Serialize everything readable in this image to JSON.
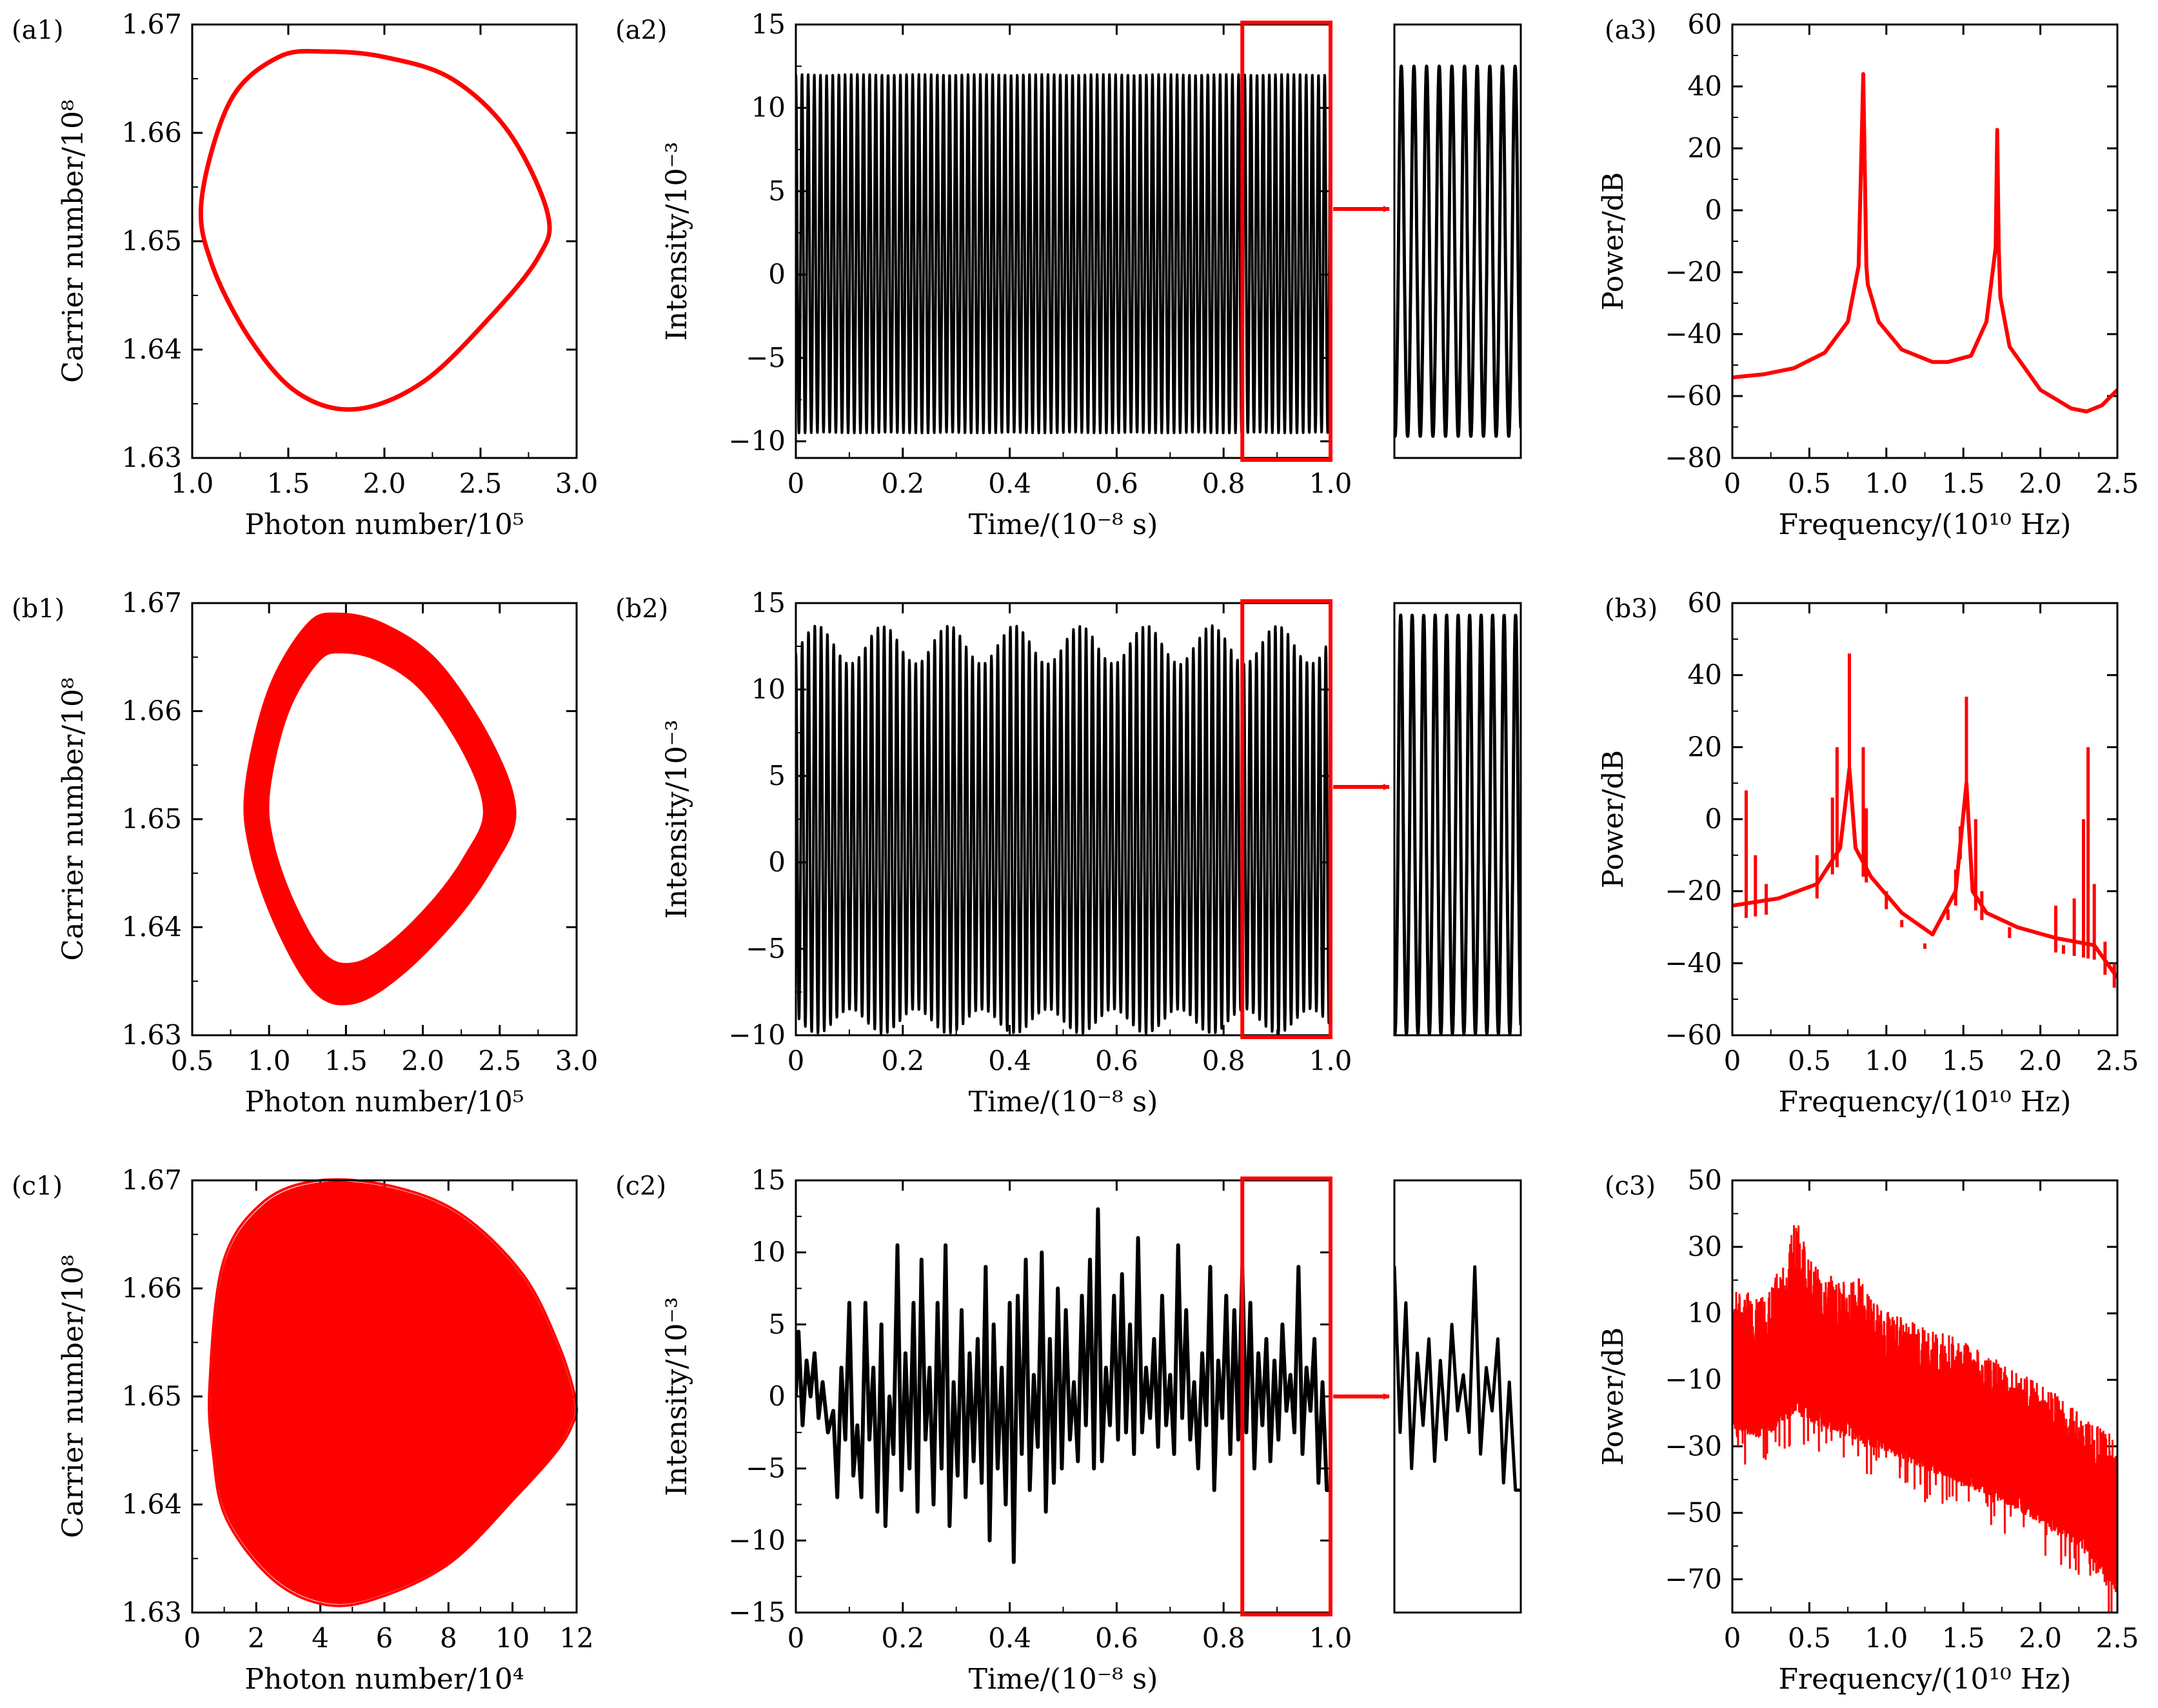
{
  "figure": {
    "colors": {
      "red": "#ff0000",
      "black": "#000000",
      "axis": "#000000"
    },
    "units": {
      "time_axis": "x in 10^-8 s",
      "intensity_axis": "y in 10^-3",
      "power_axis": "y in dB",
      "frequency_axis": "x in 10^10 Hz"
    }
  },
  "chart_data": [
    {
      "id": "a1",
      "panel_label": "(a1)",
      "type": "line",
      "xlabel": "Photon number/10⁵",
      "ylabel": "Carrier number/10⁸",
      "xlim": [
        1.0,
        3.0
      ],
      "ylim": [
        1.63,
        1.67
      ],
      "xticks": [
        "1.0",
        "1.5",
        "2.0",
        "2.5",
        "3.0"
      ],
      "yticks": [
        "1.63",
        "1.64",
        "1.65",
        "1.66",
        "1.67"
      ],
      "series": [
        {
          "name": "phase portrait",
          "color": "#ff0000",
          "kind": "limit-cycle",
          "x": [
            1.05,
            1.2,
            1.45,
            1.7,
            2.0,
            2.35,
            2.65,
            2.85,
            2.8,
            2.55,
            2.2,
            1.85,
            1.55,
            1.3,
            1.1,
            1.05
          ],
          "y": [
            1.654,
            1.663,
            1.667,
            1.6675,
            1.667,
            1.665,
            1.66,
            1.6525,
            1.6485,
            1.643,
            1.637,
            1.6345,
            1.636,
            1.641,
            1.648,
            1.654
          ]
        }
      ]
    },
    {
      "id": "a2",
      "panel_label": "(a2)",
      "type": "line",
      "xlabel": "Time/(10⁻⁸ s)",
      "ylabel": "Intensity/10⁻³",
      "xlim": [
        0,
        1.0
      ],
      "ylim": [
        -11,
        15
      ],
      "xticks": [
        "0",
        "0.2",
        "0.4",
        "0.6",
        "0.8",
        "1.0"
      ],
      "yticks": [
        "−10",
        "−5",
        "0",
        "5",
        "10",
        "15"
      ],
      "series": [
        {
          "name": "intensity",
          "color": "#000000",
          "kind": "periodic",
          "period": 0.0115,
          "max": 12,
          "min": -9.5
        }
      ],
      "zoom": {
        "x_range": [
          0.835,
          1.0
        ],
        "cycles": 10,
        "max": 12.5,
        "min": -9.7
      }
    },
    {
      "id": "a3",
      "panel_label": "(a3)",
      "type": "line",
      "xlabel": "Frequency/(10¹⁰ Hz)",
      "ylabel": "Power/dB",
      "xlim": [
        0,
        2.5
      ],
      "ylim": [
        -80,
        60
      ],
      "xticks": [
        "0",
        "0.5",
        "1.0",
        "1.5",
        "2.0",
        "2.5"
      ],
      "yticks": [
        "−80",
        "−60",
        "−40",
        "−20",
        "0",
        "20",
        "40",
        "60"
      ],
      "series": [
        {
          "name": "power spectrum",
          "color": "#ff0000",
          "x": [
            0,
            0.2,
            0.4,
            0.6,
            0.75,
            0.82,
            0.85,
            0.87,
            0.88,
            0.95,
            1.1,
            1.3,
            1.4,
            1.55,
            1.65,
            1.71,
            1.72,
            1.73,
            1.74,
            1.8,
            2.0,
            2.2,
            2.3,
            2.4,
            2.5
          ],
          "y": [
            -54,
            -53,
            -51,
            -46,
            -36,
            -18,
            44,
            -18,
            -24,
            -36,
            -45,
            -49,
            -49,
            -47,
            -36,
            -12,
            26,
            -12,
            -28,
            -44,
            -58,
            -64,
            -65,
            -63,
            -58
          ]
        }
      ]
    },
    {
      "id": "b1",
      "panel_label": "(b1)",
      "type": "line",
      "xlabel": "Photon number/10⁵",
      "ylabel": "Carrier number/10⁸",
      "xlim": [
        0.5,
        3.0
      ],
      "ylim": [
        1.63,
        1.67
      ],
      "xticks": [
        "0.5",
        "1.0",
        "1.5",
        "2.0",
        "2.5",
        "3.0"
      ],
      "yticks": [
        "1.63",
        "1.64",
        "1.65",
        "1.66",
        "1.67"
      ],
      "series": [
        {
          "name": "phase portrait",
          "color": "#ff0000",
          "kind": "thick-torus",
          "x": [
            0.85,
            1.0,
            1.25,
            1.45,
            1.75,
            2.1,
            2.45,
            2.6,
            2.45,
            2.2,
            1.85,
            1.55,
            1.3,
            1.05,
            0.88,
            0.85
          ],
          "y": [
            1.653,
            1.662,
            1.668,
            1.669,
            1.668,
            1.6645,
            1.657,
            1.6505,
            1.6455,
            1.6405,
            1.6355,
            1.633,
            1.634,
            1.64,
            1.647,
            1.653
          ]
        }
      ]
    },
    {
      "id": "b2",
      "panel_label": "(b2)",
      "type": "line",
      "xlabel": "Time/(10⁻⁸ s)",
      "ylabel": "Intensity/10⁻³",
      "xlim": [
        0,
        1.0
      ],
      "ylim": [
        -10,
        15
      ],
      "xticks": [
        "0",
        "0.2",
        "0.4",
        "0.6",
        "0.8",
        "1.0"
      ],
      "yticks": [
        "−10",
        "−5",
        "0",
        "5",
        "10",
        "15"
      ],
      "series": [
        {
          "name": "intensity",
          "color": "#000000",
          "kind": "quasi-periodic",
          "period": 0.0118,
          "envelope_period": 0.123,
          "max_range": [
            11.5,
            13.7
          ],
          "min_range": [
            -8.5,
            -9.9
          ]
        }
      ],
      "zoom": {
        "x_range": [
          0.835,
          1.0
        ],
        "cycles": 11,
        "max": 14.3,
        "min": -9.9
      }
    },
    {
      "id": "b3",
      "panel_label": "(b3)",
      "type": "line",
      "xlabel": "Frequency/(10¹⁰ Hz)",
      "ylabel": "Power/dB",
      "xlim": [
        0,
        2.5
      ],
      "ylim": [
        -60,
        60
      ],
      "xticks": [
        "0",
        "0.5",
        "1.0",
        "1.5",
        "2.0",
        "2.5"
      ],
      "yticks": [
        "−60",
        "−40",
        "−20",
        "0",
        "20",
        "40",
        "60"
      ],
      "series": [
        {
          "name": "power spectrum",
          "color": "#ff0000",
          "baseline": {
            "x": [
              0,
              0.3,
              0.55,
              0.7,
              0.76,
              0.8,
              0.9,
              1.1,
              1.3,
              1.45,
              1.52,
              1.56,
              1.65,
              1.85,
              2.1,
              2.35,
              2.5
            ],
            "y": [
              -24,
              -22,
              -18,
              -8,
              14,
              -8,
              -16,
              -26,
              -32,
              -20,
              10,
              -20,
              -26,
              -30,
              -33,
              -35,
              -44
            ]
          },
          "peaks": [
            [
              0.09,
              8
            ],
            [
              0.15,
              -10
            ],
            [
              0.22,
              -18
            ],
            [
              0.55,
              -10
            ],
            [
              0.65,
              6
            ],
            [
              0.68,
              20
            ],
            [
              0.76,
              46
            ],
            [
              0.85,
              20
            ],
            [
              0.87,
              3
            ],
            [
              1.0,
              -20
            ],
            [
              1.1,
              -28
            ],
            [
              1.25,
              -36
            ],
            [
              1.4,
              -25
            ],
            [
              1.45,
              -14
            ],
            [
              1.48,
              -2
            ],
            [
              1.52,
              34
            ],
            [
              1.58,
              0
            ],
            [
              1.62,
              -20
            ],
            [
              1.8,
              -30
            ],
            [
              2.1,
              -24
            ],
            [
              2.15,
              -35
            ],
            [
              2.22,
              -22
            ],
            [
              2.28,
              0
            ],
            [
              2.31,
              20
            ],
            [
              2.35,
              -18
            ],
            [
              2.42,
              -34
            ],
            [
              2.48,
              -40
            ]
          ]
        }
      ]
    },
    {
      "id": "c1",
      "panel_label": "(c1)",
      "type": "line",
      "xlabel": "Photon number/10⁴",
      "ylabel": "Carrier number/10⁸",
      "xlim": [
        0,
        12
      ],
      "ylim": [
        1.63,
        1.67
      ],
      "xticks": [
        "0",
        "2",
        "4",
        "6",
        "8",
        "10",
        "12"
      ],
      "yticks": [
        "1.63",
        "1.64",
        "1.65",
        "1.66",
        "1.67"
      ],
      "series": [
        {
          "name": "phase portrait",
          "color": "#ff0000",
          "kind": "chaotic-filled",
          "x": [
            0.7,
            1.1,
            2.3,
            4.0,
            6.2,
            8.3,
            10.2,
            11.3,
            11.8,
            11.7,
            11.2,
            10.0,
            8.0,
            5.8,
            4.2,
            2.6,
            1.2,
            0.8,
            0.7
          ],
          "y": [
            1.651,
            1.662,
            1.6675,
            1.6695,
            1.669,
            1.6665,
            1.661,
            1.6545,
            1.6495,
            1.6475,
            1.645,
            1.641,
            1.635,
            1.6318,
            1.6312,
            1.6335,
            1.639,
            1.645,
            1.651
          ]
        }
      ]
    },
    {
      "id": "c2",
      "panel_label": "(c2)",
      "type": "line",
      "xlabel": "Time/(10⁻⁸ s)",
      "ylabel": "Intensity/10⁻³",
      "xlim": [
        0,
        1.0
      ],
      "ylim": [
        -15,
        15
      ],
      "xticks": [
        "0",
        "0.2",
        "0.4",
        "0.6",
        "0.8",
        "1.0"
      ],
      "yticks": [
        "−15",
        "−10",
        "−5",
        "0",
        "5",
        "10",
        "15"
      ],
      "series": [
        {
          "name": "intensity",
          "color": "#000000",
          "kind": "chaotic",
          "peak_times": [
            0.005,
            0.02,
            0.035,
            0.05,
            0.07,
            0.085,
            0.1,
            0.115,
            0.13,
            0.145,
            0.16,
            0.175,
            0.19,
            0.205,
            0.22,
            0.235,
            0.25,
            0.265,
            0.28,
            0.295,
            0.31,
            0.325,
            0.34,
            0.355,
            0.37,
            0.385,
            0.4,
            0.415,
            0.43,
            0.445,
            0.46,
            0.475,
            0.49,
            0.505,
            0.52,
            0.535,
            0.55,
            0.565,
            0.58,
            0.595,
            0.61,
            0.625,
            0.64,
            0.655,
            0.67,
            0.685,
            0.7,
            0.715,
            0.73,
            0.745,
            0.76,
            0.775,
            0.79,
            0.805,
            0.82,
            0.835,
            0.85,
            0.865,
            0.88,
            0.895,
            0.91,
            0.925,
            0.94,
            0.955,
            0.97,
            0.985
          ],
          "peaks": [
            4.5,
            2.5,
            3,
            1,
            -1,
            2,
            6.5,
            -2,
            6.5,
            2,
            5,
            0,
            10.5,
            3,
            6.5,
            9.5,
            2,
            6.5,
            10.5,
            1,
            6,
            3,
            4,
            9,
            5,
            2,
            6.5,
            7,
            9.5,
            1.5,
            10,
            4,
            7.5,
            6,
            1,
            7,
            9.5,
            13,
            2,
            7,
            8.5,
            5,
            11,
            2,
            4,
            7,
            1.5,
            10.5,
            6,
            1,
            3,
            9,
            2.5,
            7,
            6,
            9,
            6.5,
            3,
            4,
            2.5,
            5,
            1.5,
            9,
            2,
            4,
            1
          ],
          "troughs": [
            -2,
            0,
            -1.5,
            -2.5,
            -7,
            -3,
            -5.5,
            -7,
            -3,
            -8,
            -9,
            -4,
            -6.5,
            -5,
            -8,
            -3,
            -7.5,
            -5,
            -9,
            -5.5,
            -7,
            -4.5,
            -6,
            -10,
            -5,
            -7.5,
            -11.5,
            -4,
            -6.5,
            -3.5,
            -8,
            -6,
            -5,
            -3,
            -4.5,
            -2,
            -5,
            -4.5,
            -2,
            -3,
            -2.5,
            -4,
            -2.5,
            -1.5,
            -3.5,
            -2,
            -4,
            -1.5,
            -3,
            -5,
            -2,
            -6.5,
            -1.5,
            -4,
            -3,
            -2.5,
            -5,
            -2,
            -4.5,
            -3,
            -1,
            -2.5,
            -4,
            -1,
            -6,
            -6.5
          ]
        }
      ],
      "zoom": {
        "x_range": [
          0.835,
          1.0
        ]
      }
    },
    {
      "id": "c3",
      "panel_label": "(c3)",
      "type": "line",
      "xlabel": "Frequency/(10¹⁰ Hz)",
      "ylabel": "Power/dB",
      "xlim": [
        0,
        2.5
      ],
      "ylim": [
        -80,
        50
      ],
      "xticks": [
        "0",
        "0.5",
        "1.0",
        "1.5",
        "2.0",
        "2.5"
      ],
      "yticks": [
        "−70",
        "−50",
        "−30",
        "−10",
        "10",
        "30",
        "50"
      ],
      "series": [
        {
          "name": "power spectrum",
          "color": "#ff0000",
          "kind": "broadband",
          "envelope_top": {
            "x": [
              0,
              0.2,
              0.35,
              0.42,
              0.5,
              0.7,
              0.85,
              0.95,
              1.2,
              1.5,
              1.8,
              2.1,
              2.3,
              2.5
            ],
            "y": [
              18,
              15,
              28,
              42,
              26,
              20,
              21,
              12,
              7,
              2,
              -6,
              -14,
              -22,
              -26
            ]
          },
          "envelope_bottom": {
            "x": [
              0,
              0.2,
              0.4,
              0.6,
              0.9,
              1.2,
              1.5,
              1.8,
              2.1,
              2.3,
              2.5
            ],
            "y": [
              -25,
              -28,
              -20,
              -25,
              -30,
              -36,
              -42,
              -48,
              -56,
              -62,
              -75
            ]
          }
        }
      ]
    }
  ]
}
